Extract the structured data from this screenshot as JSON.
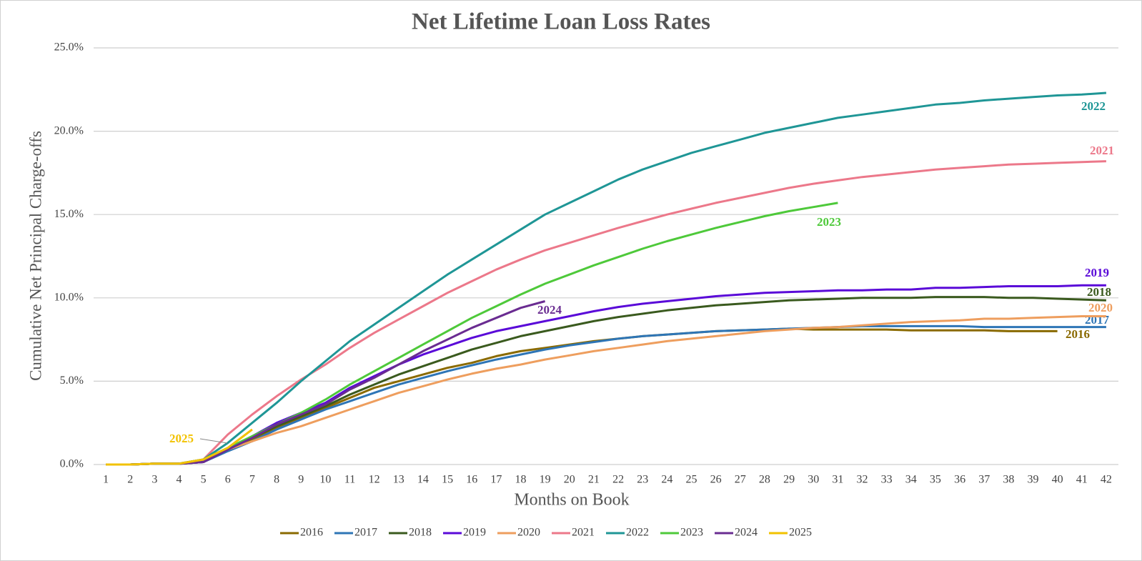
{
  "chart_data": {
    "type": "line",
    "title": "Net Lifetime Loan Loss Rates",
    "x_label": "Months on Book",
    "y_label": "Cumulative Net Principal Charge-offs",
    "categories": [
      "1",
      "2",
      "3",
      "4",
      "5",
      "6",
      "7",
      "8",
      "9",
      "10",
      "11",
      "12",
      "13",
      "14",
      "15",
      "16",
      "17",
      "18",
      "19",
      "20",
      "21",
      "22",
      "23",
      "24",
      "25",
      "26",
      "27",
      "28",
      "29",
      "30",
      "31",
      "32",
      "33",
      "34",
      "35",
      "36",
      "37",
      "38",
      "39",
      "40",
      "41",
      "42"
    ],
    "ylim": [
      0,
      25
    ],
    "yticks": [
      {
        "value": 0,
        "label": "0.0%"
      },
      {
        "value": 5,
        "label": "5.0%"
      },
      {
        "value": 10,
        "label": "10.0%"
      },
      {
        "value": 15,
        "label": "15.0%"
      },
      {
        "value": 20,
        "label": "20.0%"
      },
      {
        "value": 25,
        "label": "25.0%"
      }
    ],
    "grid": true,
    "legend": "bottom",
    "series": [
      {
        "name": "2016",
        "color": "#8a6a00",
        "values": [
          0,
          0,
          0.05,
          0.05,
          0.15,
          0.9,
          1.5,
          2.2,
          2.8,
          3.4,
          4.0,
          4.6,
          5.0,
          5.4,
          5.8,
          6.1,
          6.5,
          6.8,
          7.0,
          7.2,
          7.4,
          7.55,
          7.7,
          7.8,
          7.9,
          8.0,
          8.05,
          8.1,
          8.15,
          8.1,
          8.1,
          8.1,
          8.1,
          8.05,
          8.05,
          8.05,
          8.05,
          8.0,
          8.0,
          8.0,
          null,
          null
        ]
      },
      {
        "name": "2017",
        "color": "#2e75b6",
        "values": [
          0,
          0,
          0.05,
          0.05,
          0.15,
          0.8,
          1.4,
          2.1,
          2.7,
          3.3,
          3.8,
          4.3,
          4.8,
          5.2,
          5.6,
          5.95,
          6.3,
          6.6,
          6.9,
          7.15,
          7.35,
          7.55,
          7.7,
          7.8,
          7.9,
          8.0,
          8.05,
          8.1,
          8.15,
          8.2,
          8.25,
          8.3,
          8.3,
          8.3,
          8.3,
          8.3,
          8.25,
          8.25,
          8.25,
          8.25,
          8.25,
          8.25
        ]
      },
      {
        "name": "2018",
        "color": "#3a5a1e",
        "values": [
          0,
          0,
          0.05,
          0.05,
          0.15,
          0.9,
          1.6,
          2.3,
          2.9,
          3.5,
          4.2,
          4.8,
          5.4,
          5.9,
          6.4,
          6.9,
          7.3,
          7.7,
          8.0,
          8.3,
          8.6,
          8.85,
          9.05,
          9.25,
          9.4,
          9.55,
          9.65,
          9.75,
          9.85,
          9.9,
          9.95,
          10.0,
          10.0,
          10.0,
          10.05,
          10.05,
          10.05,
          10.0,
          10.0,
          9.95,
          9.9,
          9.85
        ]
      },
      {
        "name": "2019",
        "color": "#5a0ad8",
        "values": [
          0,
          0,
          0.05,
          0.05,
          0.15,
          0.9,
          1.7,
          2.5,
          3.1,
          3.7,
          4.6,
          5.3,
          6.0,
          6.6,
          7.1,
          7.6,
          8.0,
          8.3,
          8.6,
          8.9,
          9.2,
          9.45,
          9.65,
          9.8,
          9.95,
          10.1,
          10.2,
          10.3,
          10.35,
          10.4,
          10.45,
          10.45,
          10.5,
          10.5,
          10.6,
          10.6,
          10.65,
          10.7,
          10.7,
          10.7,
          10.75,
          10.75
        ]
      },
      {
        "name": "2020",
        "color": "#ee9e5e",
        "values": [
          0,
          0,
          0.05,
          0.05,
          0.3,
          0.9,
          1.4,
          1.9,
          2.3,
          2.8,
          3.3,
          3.8,
          4.3,
          4.7,
          5.1,
          5.45,
          5.75,
          6.0,
          6.3,
          6.55,
          6.8,
          7.0,
          7.2,
          7.4,
          7.55,
          7.7,
          7.85,
          8.0,
          8.1,
          8.2,
          8.25,
          8.35,
          8.45,
          8.55,
          8.6,
          8.65,
          8.75,
          8.75,
          8.8,
          8.85,
          8.9,
          8.9
        ]
      },
      {
        "name": "2021",
        "color": "#ec788a",
        "values": [
          0,
          0,
          0.05,
          0.05,
          0.3,
          1.8,
          3.0,
          4.1,
          5.1,
          6.0,
          7.0,
          7.9,
          8.7,
          9.5,
          10.3,
          11.0,
          11.7,
          12.3,
          12.85,
          13.3,
          13.75,
          14.2,
          14.6,
          15.0,
          15.35,
          15.7,
          16.0,
          16.3,
          16.6,
          16.85,
          17.05,
          17.25,
          17.4,
          17.55,
          17.7,
          17.8,
          17.9,
          18.0,
          18.05,
          18.1,
          18.15,
          18.2
        ]
      },
      {
        "name": "2022",
        "color": "#1f9696",
        "values": [
          0,
          0,
          0.05,
          0.05,
          0.3,
          1.3,
          2.5,
          3.7,
          5.0,
          6.2,
          7.4,
          8.4,
          9.4,
          10.4,
          11.4,
          12.3,
          13.2,
          14.1,
          15.0,
          15.7,
          16.4,
          17.1,
          17.7,
          18.2,
          18.7,
          19.1,
          19.5,
          19.9,
          20.2,
          20.5,
          20.8,
          21.0,
          21.2,
          21.4,
          21.6,
          21.7,
          21.85,
          21.95,
          22.05,
          22.15,
          22.2,
          22.3
        ]
      },
      {
        "name": "2023",
        "color": "#4ec93a",
        "values": [
          0,
          0,
          0.05,
          0.05,
          0.3,
          1.0,
          1.7,
          2.4,
          3.1,
          3.9,
          4.8,
          5.6,
          6.4,
          7.2,
          8.0,
          8.8,
          9.5,
          10.2,
          10.85,
          11.4,
          11.95,
          12.45,
          12.95,
          13.4,
          13.8,
          14.2,
          14.55,
          14.9,
          15.2,
          15.45,
          15.7,
          null,
          null,
          null,
          null,
          null,
          null,
          null,
          null,
          null,
          null,
          null
        ]
      },
      {
        "name": "2024",
        "color": "#6a2c91",
        "values": [
          0,
          0,
          0.05,
          0.05,
          0.15,
          0.9,
          1.6,
          2.4,
          3.0,
          3.6,
          4.5,
          5.2,
          6.0,
          6.8,
          7.5,
          8.2,
          8.8,
          9.4,
          9.8,
          null,
          null,
          null,
          null,
          null,
          null,
          null,
          null,
          null,
          null,
          null,
          null,
          null,
          null,
          null,
          null,
          null,
          null,
          null,
          null,
          null,
          null,
          null
        ]
      },
      {
        "name": "2025",
        "color": "#f2c200",
        "values": [
          0,
          0,
          0.05,
          0.05,
          0.3,
          1.0,
          2.1,
          null,
          null,
          null,
          null,
          null,
          null,
          null,
          null,
          null,
          null,
          null,
          null,
          null,
          null,
          null,
          null,
          null,
          null,
          null,
          null,
          null,
          null,
          null,
          null,
          null,
          null,
          null,
          null,
          null,
          null,
          null,
          null,
          null,
          null,
          null
        ]
      }
    ]
  }
}
